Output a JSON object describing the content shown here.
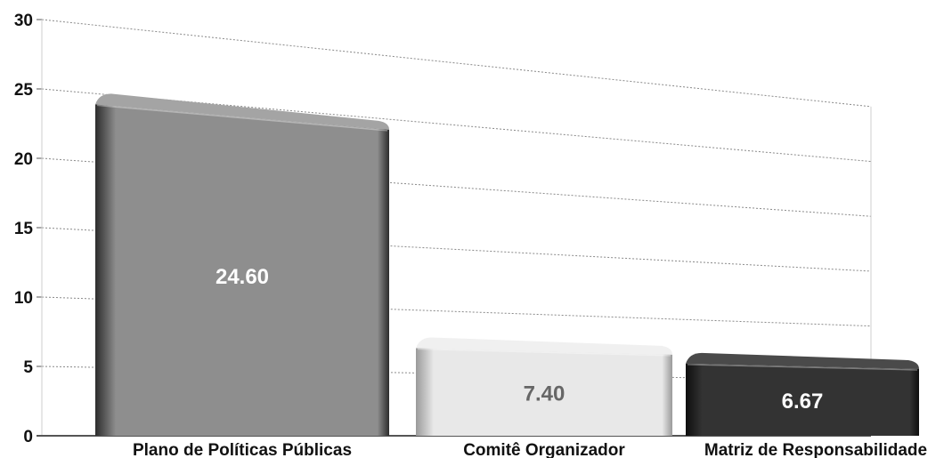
{
  "chart_data": {
    "type": "bar",
    "categories": [
      "Plano de Políticas Públicas",
      "Comitê Organizador",
      "Matriz de Responsabilidade"
    ],
    "values": [
      24.6,
      7.4,
      6.67
    ],
    "value_labels": [
      "24.60",
      "7.40",
      "6.67"
    ],
    "title": "",
    "xlabel": "",
    "ylabel": "",
    "ylim": [
      0,
      30
    ],
    "yticks": [
      0,
      5,
      10,
      15,
      20,
      25,
      30
    ],
    "ytick_labels": [
      "0",
      "5",
      "10",
      "15",
      "20",
      "25",
      "30"
    ],
    "grid": true,
    "legend": "none",
    "style": "3d-bar-grayscale",
    "colors": {
      "bar_front": [
        "#8e8e8e",
        "#e8e8e8",
        "#333333"
      ],
      "bar_top": [
        "#a4a4a4",
        "#f0f0f0",
        "#4a4a4a"
      ],
      "bar_shade": [
        "#2c2c2c",
        "#9a9a9a",
        "#0e0e0e"
      ],
      "value_text": [
        "#ffffff",
        "#666666",
        "#ffffff"
      ],
      "gridline": "#8a8a8a",
      "axis": "#555555"
    }
  }
}
